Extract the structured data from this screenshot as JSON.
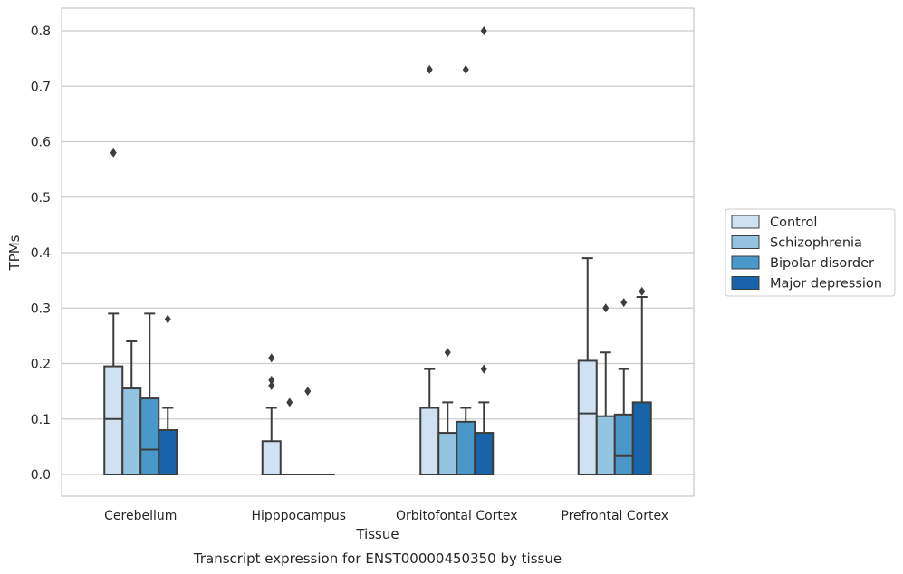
{
  "chart_data": {
    "type": "boxplot",
    "xlabel": "Tissue",
    "ylabel": "TPMs",
    "caption": "Transcript expression for ENST00000450350 by tissue",
    "ylim": [
      -0.04,
      0.84
    ],
    "yticks": [
      "0.0",
      "0.1",
      "0.2",
      "0.3",
      "0.4",
      "0.5",
      "0.6",
      "0.7",
      "0.8"
    ],
    "grid": true,
    "legend_position": "right",
    "categories": [
      "Cerebellum",
      "Hipppocampus",
      "Orbitofontal Cortex",
      "Prefrontal Cortex"
    ],
    "series": [
      {
        "name": "Control",
        "color": "#d0e1f2",
        "boxes": [
          {
            "q1": 0.0,
            "median": 0.1,
            "q3": 0.195,
            "whisker_low": 0.0,
            "whisker_high": 0.29,
            "outliers": [
              0.58
            ]
          },
          {
            "q1": 0.0,
            "median": 0.0,
            "q3": 0.06,
            "whisker_low": 0.0,
            "whisker_high": 0.12,
            "outliers": [
              0.16,
              0.17,
              0.21
            ]
          },
          {
            "q1": 0.0,
            "median": 0.0,
            "q3": 0.12,
            "whisker_low": 0.0,
            "whisker_high": 0.19,
            "outliers": [
              0.73
            ]
          },
          {
            "q1": 0.0,
            "median": 0.11,
            "q3": 0.205,
            "whisker_low": 0.0,
            "whisker_high": 0.39,
            "outliers": []
          }
        ]
      },
      {
        "name": "Schizophrenia",
        "color": "#94c4df",
        "boxes": [
          {
            "q1": 0.0,
            "median": 0.0,
            "q3": 0.155,
            "whisker_low": 0.0,
            "whisker_high": 0.24,
            "outliers": []
          },
          {
            "q1": 0.0,
            "median": 0.0,
            "q3": 0.0,
            "whisker_low": 0.0,
            "whisker_high": 0.0,
            "outliers": [
              0.13
            ]
          },
          {
            "q1": 0.0,
            "median": 0.0,
            "q3": 0.075,
            "whisker_low": 0.0,
            "whisker_high": 0.13,
            "outliers": [
              0.22
            ]
          },
          {
            "q1": 0.0,
            "median": 0.0,
            "q3": 0.105,
            "whisker_low": 0.0,
            "whisker_high": 0.22,
            "outliers": [
              0.3
            ]
          }
        ]
      },
      {
        "name": "Bipolar disorder",
        "color": "#4a98c9",
        "boxes": [
          {
            "q1": 0.0,
            "median": 0.045,
            "q3": 0.137,
            "whisker_low": 0.0,
            "whisker_high": 0.29,
            "outliers": []
          },
          {
            "q1": 0.0,
            "median": 0.0,
            "q3": 0.0,
            "whisker_low": 0.0,
            "whisker_high": 0.0,
            "outliers": [
              0.15
            ]
          },
          {
            "q1": 0.0,
            "median": 0.0,
            "q3": 0.095,
            "whisker_low": 0.0,
            "whisker_high": 0.12,
            "outliers": [
              0.73
            ]
          },
          {
            "q1": 0.0,
            "median": 0.033,
            "q3": 0.108,
            "whisker_low": 0.0,
            "whisker_high": 0.19,
            "outliers": [
              0.31
            ]
          }
        ]
      },
      {
        "name": "Major depression",
        "color": "#1764ab",
        "boxes": [
          {
            "q1": 0.0,
            "median": 0.0,
            "q3": 0.08,
            "whisker_low": 0.0,
            "whisker_high": 0.12,
            "outliers": [
              0.28
            ]
          },
          {
            "q1": 0.0,
            "median": 0.0,
            "q3": 0.0,
            "whisker_low": 0.0,
            "whisker_high": 0.0,
            "outliers": []
          },
          {
            "q1": 0.0,
            "median": 0.0,
            "q3": 0.075,
            "whisker_low": 0.0,
            "whisker_high": 0.13,
            "outliers": [
              0.19,
              0.8
            ]
          },
          {
            "q1": 0.0,
            "median": 0.0,
            "q3": 0.13,
            "whisker_low": 0.0,
            "whisker_high": 0.32,
            "outliers": [
              0.33
            ]
          }
        ]
      }
    ]
  }
}
